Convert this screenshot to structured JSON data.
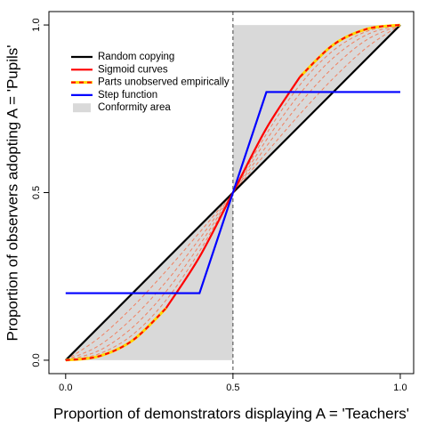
{
  "chart_data": {
    "type": "line",
    "xlabel": "Proportion of demonstrators displaying A = 'Teachers'",
    "ylabel": "Proportion of observers adopting A = 'Pupils'",
    "xlim": [
      -0.05,
      1.04
    ],
    "ylim": [
      -0.04,
      1.04
    ],
    "xticks": [
      {
        "value": 0,
        "label": "0.0"
      },
      {
        "value": 0.5,
        "label": "0.5"
      },
      {
        "value": 1,
        "label": "1.0"
      }
    ],
    "yticks": [
      {
        "value": 0,
        "label": "0.0"
      },
      {
        "value": 0.5,
        "label": "0.5"
      },
      {
        "value": 1,
        "label": "1.0"
      }
    ],
    "vline": 0.5,
    "area": {
      "name": "Conformity area",
      "color": "#d9d9d9",
      "polygons": [
        {
          "x": [
            0,
            0.5,
            0.5
          ],
          "y": [
            0,
            0,
            0.5
          ]
        },
        {
          "x": [
            0.5,
            0.5,
            1
          ],
          "y": [
            0.5,
            1,
            1
          ]
        }
      ]
    },
    "x": [
      0,
      0.1,
      0.2,
      0.3,
      0.4,
      0.5,
      0.6,
      0.7,
      0.8,
      0.9,
      1
    ],
    "sigmoid_family": [
      [
        0,
        0.019,
        0.076,
        0.179,
        0.325,
        0.5,
        0.675,
        0.821,
        0.924,
        0.981,
        1
      ],
      [
        0,
        0.029,
        0.098,
        0.205,
        0.343,
        0.5,
        0.657,
        0.795,
        0.902,
        0.971,
        1
      ],
      [
        0,
        0.044,
        0.126,
        0.234,
        0.362,
        0.5,
        0.638,
        0.766,
        0.874,
        0.956,
        1
      ],
      [
        0,
        0.067,
        0.159,
        0.266,
        0.381,
        0.5,
        0.619,
        0.734,
        0.841,
        0.933,
        1
      ]
    ],
    "sigmoid_family_color": "#f08060",
    "series": [
      {
        "name": "Random copying",
        "color": "#000000",
        "x": [
          0,
          1
        ],
        "values": [
          0,
          1
        ]
      },
      {
        "name": "Sigmoid curves",
        "color": "#ff0000",
        "values": [
          null,
          null,
          null,
          0.155,
          0.308,
          0.5,
          0.692,
          0.845,
          null,
          null,
          null
        ]
      },
      {
        "name": "Parts unobserved empirically",
        "color": "#ffd700",
        "color2": "#ff0000",
        "values": [
          0,
          0.012,
          0.059,
          0.155,
          null,
          null,
          null,
          0.845,
          0.941,
          0.988,
          1
        ]
      },
      {
        "name": "Step function",
        "color": "#0000ff",
        "x": [
          0,
          0.4,
          0.6,
          1
        ],
        "values": [
          0.2,
          0.2,
          0.8,
          0.8
        ]
      }
    ]
  }
}
